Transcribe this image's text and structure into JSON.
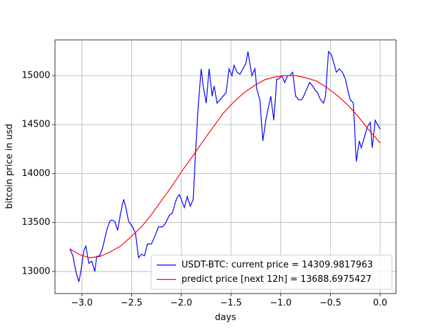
{
  "chart_data": {
    "type": "line",
    "x_label": "days",
    "y_label": "bitcoin price in usd",
    "xlim": [
      -3.27,
      0.159
    ],
    "ylim": [
      12775,
      15365
    ],
    "xticks": [
      {
        "value": -3.0,
        "label": "−3.0"
      },
      {
        "value": -2.5,
        "label": "−2.5"
      },
      {
        "value": -2.0,
        "label": "−2.0"
      },
      {
        "value": -1.5,
        "label": "−1.5"
      },
      {
        "value": -1.0,
        "label": "−1.0"
      },
      {
        "value": -0.5,
        "label": "−0.5"
      },
      {
        "value": 0,
        "label": "0.0"
      }
    ],
    "yticks": [
      13000,
      13500,
      14000,
      14500,
      15000
    ],
    "grid": true,
    "legend": "lower right",
    "series": [
      {
        "name": "USDT-BTC: current price = 14309.9817963",
        "color": "#0000ff",
        "x": [
          -3.12,
          -3.09,
          -3.06,
          -3.03,
          -3.01,
          -2.98,
          -2.96,
          -2.93,
          -2.9,
          -2.87,
          -2.85,
          -2.82,
          -2.79,
          -2.75,
          -2.72,
          -2.7,
          -2.67,
          -2.64,
          -2.61,
          -2.58,
          -2.56,
          -2.53,
          -2.49,
          -2.46,
          -2.43,
          -2.4,
          -2.37,
          -2.34,
          -2.3,
          -2.27,
          -2.23,
          -2.19,
          -2.16,
          -2.12,
          -2.09,
          -2.05,
          -2.02,
          -2.0,
          -1.97,
          -1.94,
          -1.91,
          -1.88,
          -1.86,
          -1.83,
          -1.8,
          -1.78,
          -1.75,
          -1.72,
          -1.69,
          -1.67,
          -1.64,
          -1.61,
          -1.58,
          -1.55,
          -1.52,
          -1.49,
          -1.47,
          -1.44,
          -1.41,
          -1.38,
          -1.35,
          -1.33,
          -1.29,
          -1.26,
          -1.24,
          -1.21,
          -1.18,
          -1.15,
          -1.13,
          -1.1,
          -1.07,
          -1.04,
          -1.02,
          -0.99,
          -0.96,
          -0.93,
          -0.91,
          -0.88,
          -0.85,
          -0.82,
          -0.79,
          -0.77,
          -0.74,
          -0.71,
          -0.68,
          -0.66,
          -0.63,
          -0.6,
          -0.57,
          -0.55,
          -0.52,
          -0.49,
          -0.46,
          -0.44,
          -0.41,
          -0.38,
          -0.35,
          -0.32,
          -0.3,
          -0.27,
          -0.24,
          -0.21,
          -0.19,
          -0.16,
          -0.13,
          -0.1,
          -0.08,
          -0.05,
          -0.02,
          0.0
        ],
        "values": [
          13232,
          13161,
          13000,
          12895,
          13000,
          13211,
          13260,
          13084,
          13105,
          13000,
          13154,
          13161,
          13246,
          13421,
          13512,
          13526,
          13512,
          13421,
          13597,
          13737,
          13667,
          13512,
          13456,
          13386,
          13140,
          13175,
          13161,
          13281,
          13281,
          13351,
          13456,
          13456,
          13491,
          13575,
          13597,
          13737,
          13786,
          13737,
          13653,
          13765,
          13667,
          13737,
          14158,
          14684,
          15070,
          14895,
          14719,
          15070,
          14789,
          14895,
          14719,
          14754,
          14789,
          14825,
          15070,
          15000,
          15105,
          15035,
          15014,
          15070,
          15126,
          15246,
          15000,
          15070,
          14860,
          14754,
          14333,
          14544,
          14649,
          14789,
          14544,
          14965,
          14965,
          15000,
          14930,
          15000,
          15000,
          15035,
          14789,
          14754,
          14754,
          14789,
          14860,
          14930,
          14895,
          14860,
          14825,
          14754,
          14719,
          14789,
          15246,
          15211,
          15105,
          15035,
          15070,
          15035,
          14965,
          14825,
          14754,
          14719,
          14123,
          14333,
          14263,
          14368,
          14474,
          14523,
          14263,
          14544,
          14488,
          14453
        ]
      },
      {
        "name": "predict price [next 12h] = 13688.6975427",
        "color": "#ff0000",
        "x": [
          -3.12,
          -3.03,
          -2.92,
          -2.82,
          -2.72,
          -2.61,
          -2.51,
          -2.4,
          -2.3,
          -2.2,
          -2.09,
          -1.99,
          -1.89,
          -1.78,
          -1.68,
          -1.58,
          -1.47,
          -1.37,
          -1.26,
          -1.16,
          -1.06,
          -0.95,
          -0.85,
          -0.75,
          -0.64,
          -0.54,
          -0.44,
          -0.33,
          -0.23,
          -0.12,
          0.0
        ],
        "values": [
          13232,
          13175,
          13140,
          13154,
          13197,
          13260,
          13351,
          13456,
          13582,
          13723,
          13877,
          14032,
          14172,
          14333,
          14474,
          14614,
          14733,
          14825,
          14902,
          14958,
          14986,
          15000,
          15000,
          14979,
          14944,
          14881,
          14804,
          14705,
          14593,
          14453,
          14312
        ]
      }
    ]
  }
}
